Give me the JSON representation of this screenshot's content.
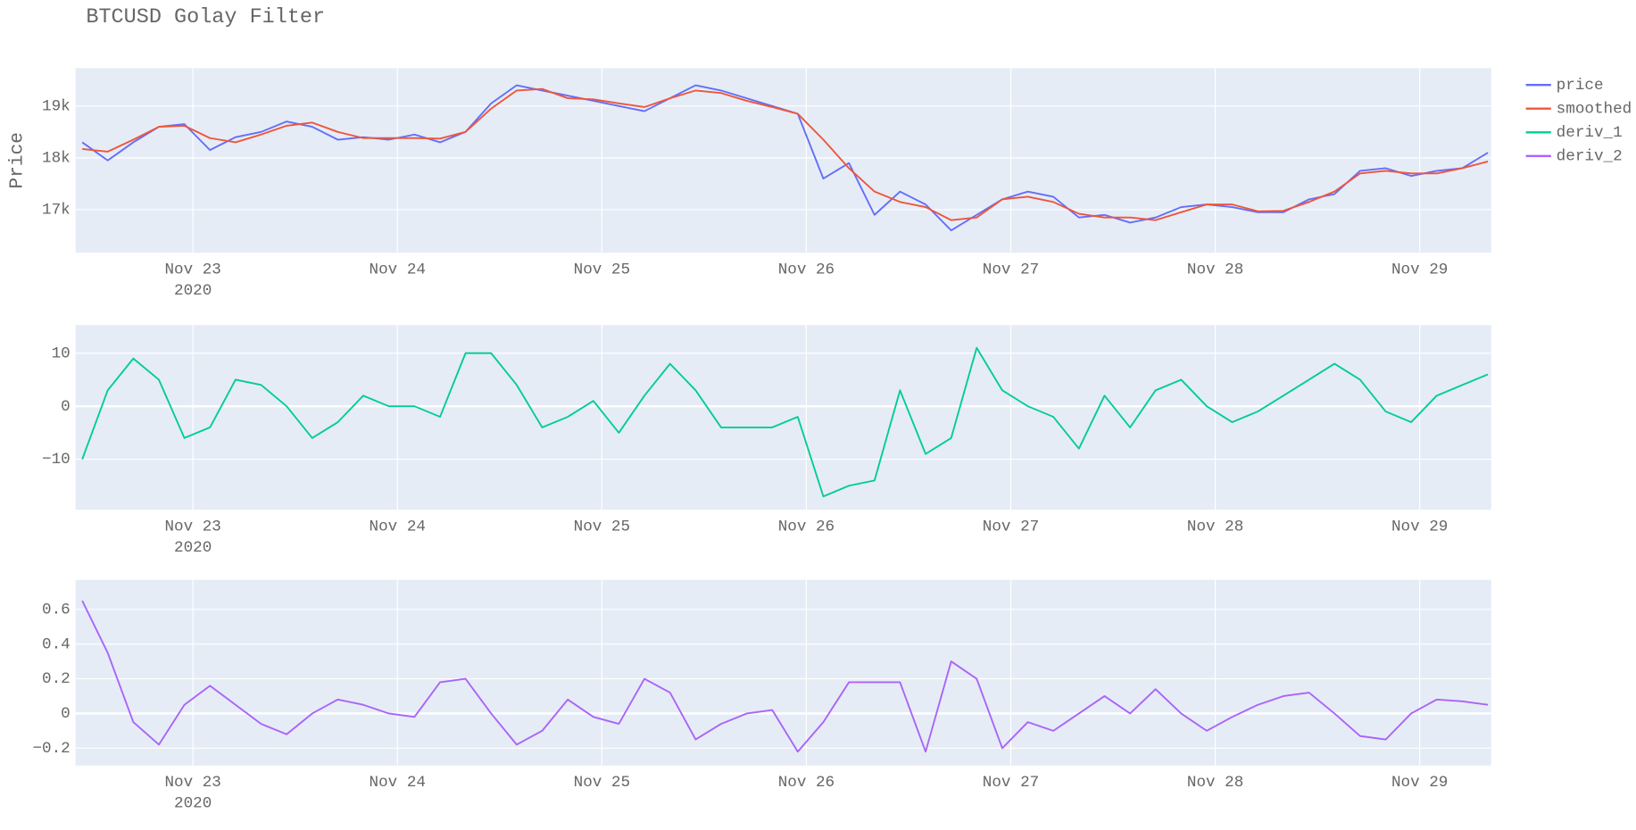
{
  "title": "BTCUSD Golay Filter",
  "legend_position": "right",
  "chart_data": [
    {
      "type": "line",
      "ylabel": "Price",
      "grid": true,
      "xtick_year": "2020",
      "x": [
        "2020-11-22 11:00",
        "2020-11-22 14:00",
        "2020-11-22 17:00",
        "2020-11-22 20:00",
        "2020-11-22 23:00",
        "2020-11-23 02:00",
        "2020-11-23 05:00",
        "2020-11-23 08:00",
        "2020-11-23 11:00",
        "2020-11-23 14:00",
        "2020-11-23 17:00",
        "2020-11-23 20:00",
        "2020-11-23 23:00",
        "2020-11-24 02:00",
        "2020-11-24 05:00",
        "2020-11-24 08:00",
        "2020-11-24 11:00",
        "2020-11-24 14:00",
        "2020-11-24 17:00",
        "2020-11-24 20:00",
        "2020-11-24 23:00",
        "2020-11-25 02:00",
        "2020-11-25 05:00",
        "2020-11-25 08:00",
        "2020-11-25 11:00",
        "2020-11-25 14:00",
        "2020-11-25 17:00",
        "2020-11-25 20:00",
        "2020-11-25 23:00",
        "2020-11-26 02:00",
        "2020-11-26 05:00",
        "2020-11-26 08:00",
        "2020-11-26 11:00",
        "2020-11-26 14:00",
        "2020-11-26 17:00",
        "2020-11-26 20:00",
        "2020-11-26 23:00",
        "2020-11-27 02:00",
        "2020-11-27 05:00",
        "2020-11-27 08:00",
        "2020-11-27 11:00",
        "2020-11-27 14:00",
        "2020-11-27 17:00",
        "2020-11-27 20:00",
        "2020-11-27 23:00",
        "2020-11-28 02:00",
        "2020-11-28 05:00",
        "2020-11-28 08:00",
        "2020-11-28 11:00",
        "2020-11-28 14:00",
        "2020-11-28 17:00",
        "2020-11-28 20:00",
        "2020-11-28 23:00",
        "2020-11-29 02:00",
        "2020-11-29 05:00",
        "2020-11-29 08:00"
      ],
      "xlim": [
        "2020-11-22 10:13",
        "2020-11-29 08:24"
      ],
      "xticks": [
        {
          "value": "2020-11-23 00:00",
          "label": "Nov 23"
        },
        {
          "value": "2020-11-24 00:00",
          "label": "Nov 24"
        },
        {
          "value": "2020-11-25 00:00",
          "label": "Nov 25"
        },
        {
          "value": "2020-11-26 00:00",
          "label": "Nov 26"
        },
        {
          "value": "2020-11-27 00:00",
          "label": "Nov 27"
        },
        {
          "value": "2020-11-28 00:00",
          "label": "Nov 28"
        },
        {
          "value": "2020-11-29 00:00",
          "label": "Nov 29"
        }
      ],
      "ylim": [
        16170,
        19730
      ],
      "yticks": [
        {
          "value": 17000,
          "label": "17k"
        },
        {
          "value": 18000,
          "label": "18k"
        },
        {
          "value": 19000,
          "label": "19k"
        }
      ],
      "series": [
        {
          "name": "price",
          "color": "#636efa",
          "values": [
            18300,
            17950,
            18300,
            18600,
            18650,
            18150,
            18400,
            18500,
            18700,
            18600,
            18350,
            18400,
            18350,
            18450,
            18300,
            18500,
            19050,
            19400,
            19300,
            19200,
            19100,
            19000,
            18900,
            19150,
            19400,
            19300,
            19150,
            19000,
            18850,
            17600,
            17900,
            16900,
            17350,
            17100,
            16600,
            16900,
            17200,
            17350,
            17250,
            16850,
            16900,
            16750,
            16850,
            17050,
            17100,
            17050,
            16950,
            16950,
            17200,
            17300,
            17750,
            17800,
            17650,
            17750,
            17800,
            18100
          ]
        },
        {
          "name": "smoothed",
          "color": "#EF553B",
          "values": [
            18170,
            18120,
            18350,
            18600,
            18620,
            18380,
            18300,
            18450,
            18620,
            18680,
            18500,
            18380,
            18380,
            18380,
            18370,
            18500,
            18950,
            19300,
            19330,
            19150,
            19130,
            19050,
            18980,
            19150,
            19300,
            19250,
            19100,
            18980,
            18850,
            18350,
            17800,
            17350,
            17150,
            17050,
            16800,
            16850,
            17200,
            17250,
            17150,
            16920,
            16850,
            16850,
            16800,
            16950,
            17100,
            17100,
            16970,
            16980,
            17150,
            17350,
            17700,
            17750,
            17700,
            17700,
            17800,
            17930
          ]
        }
      ]
    },
    {
      "type": "line",
      "grid": true,
      "xtick_year": "2020",
      "x": [
        "2020-11-22 11:00",
        "2020-11-22 14:00",
        "2020-11-22 17:00",
        "2020-11-22 20:00",
        "2020-11-22 23:00",
        "2020-11-23 02:00",
        "2020-11-23 05:00",
        "2020-11-23 08:00",
        "2020-11-23 11:00",
        "2020-11-23 14:00",
        "2020-11-23 17:00",
        "2020-11-23 20:00",
        "2020-11-23 23:00",
        "2020-11-24 02:00",
        "2020-11-24 05:00",
        "2020-11-24 08:00",
        "2020-11-24 11:00",
        "2020-11-24 14:00",
        "2020-11-24 17:00",
        "2020-11-24 20:00",
        "2020-11-24 23:00",
        "2020-11-25 02:00",
        "2020-11-25 05:00",
        "2020-11-25 08:00",
        "2020-11-25 11:00",
        "2020-11-25 14:00",
        "2020-11-25 17:00",
        "2020-11-25 20:00",
        "2020-11-25 23:00",
        "2020-11-26 02:00",
        "2020-11-26 05:00",
        "2020-11-26 08:00",
        "2020-11-26 11:00",
        "2020-11-26 14:00",
        "2020-11-26 17:00",
        "2020-11-26 20:00",
        "2020-11-26 23:00",
        "2020-11-27 02:00",
        "2020-11-27 05:00",
        "2020-11-27 08:00",
        "2020-11-27 11:00",
        "2020-11-27 14:00",
        "2020-11-27 17:00",
        "2020-11-27 20:00",
        "2020-11-27 23:00",
        "2020-11-28 02:00",
        "2020-11-28 05:00",
        "2020-11-28 08:00",
        "2020-11-28 11:00",
        "2020-11-28 14:00",
        "2020-11-28 17:00",
        "2020-11-28 20:00",
        "2020-11-28 23:00",
        "2020-11-29 02:00",
        "2020-11-29 05:00",
        "2020-11-29 08:00"
      ],
      "xlim": [
        "2020-11-22 10:13",
        "2020-11-29 08:24"
      ],
      "xticks": [
        {
          "value": "2020-11-23 00:00",
          "label": "Nov 23"
        },
        {
          "value": "2020-11-24 00:00",
          "label": "Nov 24"
        },
        {
          "value": "2020-11-25 00:00",
          "label": "Nov 25"
        },
        {
          "value": "2020-11-26 00:00",
          "label": "Nov 26"
        },
        {
          "value": "2020-11-27 00:00",
          "label": "Nov 27"
        },
        {
          "value": "2020-11-28 00:00",
          "label": "Nov 28"
        },
        {
          "value": "2020-11-29 00:00",
          "label": "Nov 29"
        }
      ],
      "ylim": [
        -19.5,
        15.3
      ],
      "yticks": [
        {
          "value": -10,
          "label": "−10"
        },
        0,
        10
      ],
      "series": [
        {
          "name": "deriv_1",
          "color": "#00cc96",
          "values": [
            -10,
            3,
            9,
            5,
            -6,
            -4,
            5,
            4,
            0,
            -6,
            -3,
            2,
            0,
            0,
            -2,
            10,
            10,
            4,
            -4,
            -2,
            1,
            -5,
            2,
            8,
            3,
            -4,
            -4,
            -4,
            -2,
            -17,
            -15,
            -14,
            3,
            -9,
            -6,
            11,
            3,
            0,
            -2,
            -8,
            2,
            -4,
            3,
            5,
            0,
            -3,
            -1,
            2,
            5,
            8,
            5,
            -1,
            -3,
            2,
            4,
            6
          ]
        }
      ]
    },
    {
      "type": "line",
      "grid": true,
      "xtick_year": "2020",
      "x": [
        "2020-11-22 11:00",
        "2020-11-22 14:00",
        "2020-11-22 17:00",
        "2020-11-22 20:00",
        "2020-11-22 23:00",
        "2020-11-23 02:00",
        "2020-11-23 05:00",
        "2020-11-23 08:00",
        "2020-11-23 11:00",
        "2020-11-23 14:00",
        "2020-11-23 17:00",
        "2020-11-23 20:00",
        "2020-11-23 23:00",
        "2020-11-24 02:00",
        "2020-11-24 05:00",
        "2020-11-24 08:00",
        "2020-11-24 11:00",
        "2020-11-24 14:00",
        "2020-11-24 17:00",
        "2020-11-24 20:00",
        "2020-11-24 23:00",
        "2020-11-25 02:00",
        "2020-11-25 05:00",
        "2020-11-25 08:00",
        "2020-11-25 11:00",
        "2020-11-25 14:00",
        "2020-11-25 17:00",
        "2020-11-25 20:00",
        "2020-11-25 23:00",
        "2020-11-26 02:00",
        "2020-11-26 05:00",
        "2020-11-26 08:00",
        "2020-11-26 11:00",
        "2020-11-26 14:00",
        "2020-11-26 17:00",
        "2020-11-26 20:00",
        "2020-11-26 23:00",
        "2020-11-27 02:00",
        "2020-11-27 05:00",
        "2020-11-27 08:00",
        "2020-11-27 11:00",
        "2020-11-27 14:00",
        "2020-11-27 17:00",
        "2020-11-27 20:00",
        "2020-11-27 23:00",
        "2020-11-28 02:00",
        "2020-11-28 05:00",
        "2020-11-28 08:00",
        "2020-11-28 11:00",
        "2020-11-28 14:00",
        "2020-11-28 17:00",
        "2020-11-28 20:00",
        "2020-11-28 23:00",
        "2020-11-29 02:00",
        "2020-11-29 05:00",
        "2020-11-29 08:00"
      ],
      "xlim": [
        "2020-11-22 10:13",
        "2020-11-29 08:24"
      ],
      "xticks": [
        {
          "value": "2020-11-23 00:00",
          "label": "Nov 23"
        },
        {
          "value": "2020-11-24 00:00",
          "label": "Nov 24"
        },
        {
          "value": "2020-11-25 00:00",
          "label": "Nov 25"
        },
        {
          "value": "2020-11-26 00:00",
          "label": "Nov 26"
        },
        {
          "value": "2020-11-27 00:00",
          "label": "Nov 27"
        },
        {
          "value": "2020-11-28 00:00",
          "label": "Nov 28"
        },
        {
          "value": "2020-11-29 00:00",
          "label": "Nov 29"
        }
      ],
      "ylim": [
        -0.3,
        0.77
      ],
      "yticks": [
        {
          "value": -0.2,
          "label": "−0.2"
        },
        0,
        0.2,
        0.4,
        0.6
      ],
      "series": [
        {
          "name": "deriv_2",
          "color": "#ab63fa",
          "values": [
            0.65,
            0.35,
            -0.05,
            -0.18,
            0.05,
            0.16,
            0.05,
            -0.06,
            -0.12,
            0,
            0.08,
            0.05,
            0,
            -0.02,
            0.18,
            0.2,
            0,
            -0.18,
            -0.1,
            0.08,
            -0.02,
            -0.06,
            0.2,
            0.12,
            -0.15,
            -0.06,
            0,
            0.02,
            -0.22,
            -0.05,
            0.18,
            0.18,
            0.18,
            -0.22,
            0.3,
            0.2,
            -0.2,
            -0.05,
            -0.1,
            0,
            0.1,
            0,
            0.14,
            0,
            -0.1,
            -0.02,
            0.05,
            0.1,
            0.12,
            0,
            -0.13,
            -0.15,
            0,
            0.08,
            0.07,
            0.05
          ]
        }
      ]
    }
  ]
}
